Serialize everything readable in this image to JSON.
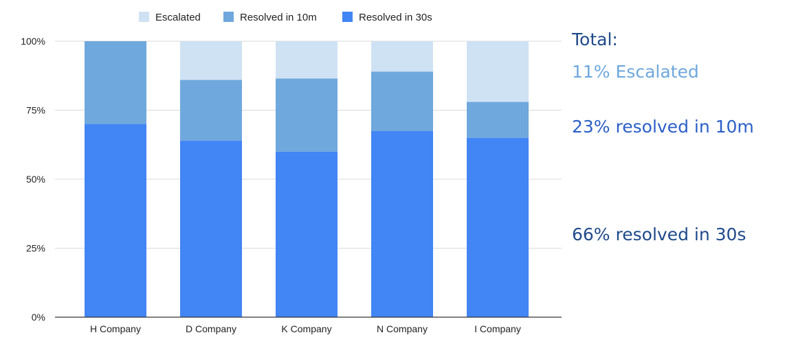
{
  "chart_data": {
    "type": "bar",
    "stacked": true,
    "categories": [
      "H Company",
      "D Company",
      "K Company",
      "N Company",
      "I Company"
    ],
    "series": [
      {
        "name": "Resolved in 30s",
        "color": "#4285f4",
        "values": [
          70,
          64,
          60,
          67.5,
          65
        ]
      },
      {
        "name": "Resolved in 10m",
        "color": "#6fa8dc",
        "values": [
          30,
          22,
          26.5,
          21.5,
          13
        ]
      },
      {
        "name": "Escalated",
        "color": "#cfe2f3",
        "values": [
          0,
          14,
          13.5,
          11,
          22
        ]
      }
    ],
    "legend_order": [
      "Escalated",
      "Resolved in 10m",
      "Resolved in 30s"
    ],
    "yticks": [
      "0%",
      "25%",
      "50%",
      "75%",
      "100%"
    ],
    "ylim": [
      0,
      100
    ],
    "grid": true,
    "legend_position": "top"
  },
  "summary": {
    "title": "Total:",
    "escalated": "11% Escalated",
    "resolved_10m": "23% resolved in 10m",
    "resolved_30s": "66% resolved in 30s"
  },
  "colors": {
    "summary_title": "#1f4a8a",
    "summary_escalated": "#6fa8dc",
    "summary_10m": "#2b5fc7",
    "summary_30s": "#1f4a8a"
  }
}
